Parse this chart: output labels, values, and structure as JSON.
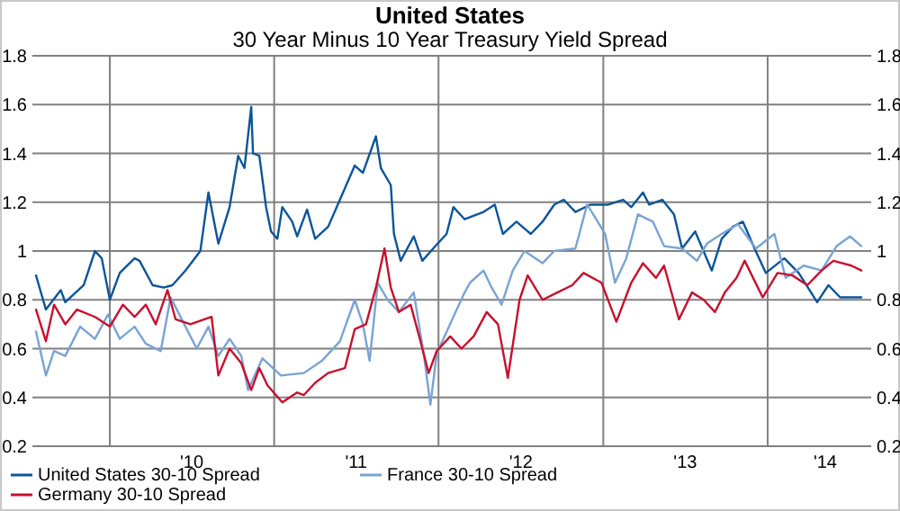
{
  "chart_data": {
    "type": "line",
    "title": "United States",
    "subtitle": "30 Year Minus 10 Year Treasury Yield Spread",
    "xlim": [
      "2009-07-13",
      "2014-08-19"
    ],
    "xticks": [
      {
        "value": "2010-01-01",
        "label": null
      },
      {
        "value": "2010-07-02",
        "label": "'10"
      },
      {
        "value": "2011-01-01",
        "label": null
      },
      {
        "value": "2011-07-02",
        "label": "'11"
      },
      {
        "value": "2012-01-01",
        "label": null
      },
      {
        "value": "2012-07-02",
        "label": "'12"
      },
      {
        "value": "2013-01-01",
        "label": null
      },
      {
        "value": "2013-07-02",
        "label": "'13"
      },
      {
        "value": "2014-01-01",
        "label": null
      },
      {
        "value": "2014-05-09",
        "label": "'14"
      }
    ],
    "ylim": [
      0.2,
      1.8
    ],
    "yticks": [
      0.2,
      0.4,
      0.6,
      0.8,
      1,
      1.2,
      1.4,
      1.6,
      1.8
    ],
    "y2lim": [
      0.2,
      1.8
    ],
    "y2ticks": [
      0.2,
      0.4,
      0.6,
      0.8,
      1,
      1.2,
      1.4,
      1.6,
      1.8
    ],
    "grid": true,
    "legend": "bottom",
    "line_style": "solid",
    "marker": "none",
    "series": [
      {
        "name": "United States 30-10 Spread",
        "color": "#0b559b",
        "x": [
          "2009-07-21",
          "2009-08-12",
          "2009-09-14",
          "2009-09-24",
          "2009-11-04",
          "2009-11-29",
          "2009-12-14",
          "2010-01-01",
          "2010-01-23",
          "2010-02-25",
          "2010-03-08",
          "2010-04-06",
          "2010-05-01",
          "2010-05-20",
          "2010-06-18",
          "2010-07-21",
          "2010-08-08",
          "2010-08-30",
          "2010-09-24",
          "2010-10-13",
          "2010-10-27",
          "2010-11-11",
          "2010-11-15",
          "2010-11-29",
          "2010-12-14",
          "2010-12-25",
          "2011-01-08",
          "2011-01-19",
          "2011-02-10",
          "2011-02-21",
          "2011-03-15",
          "2011-04-02",
          "2011-05-01",
          "2011-05-27",
          "2011-06-29",
          "2011-07-17",
          "2011-08-15",
          "2011-08-26",
          "2011-09-17",
          "2011-09-24",
          "2011-10-09",
          "2011-11-07",
          "2011-11-26",
          "2011-12-25",
          "2012-01-19",
          "2012-02-03",
          "2012-02-28",
          "2012-04-10",
          "2012-05-05",
          "2012-05-23",
          "2012-06-22",
          "2012-07-24",
          "2012-08-19",
          "2012-09-14",
          "2012-10-05",
          "2012-10-31",
          "2012-12-03",
          "2013-01-12",
          "2013-02-14",
          "2013-03-04",
          "2013-03-30",
          "2013-04-13",
          "2013-05-12",
          "2013-06-07",
          "2013-06-25",
          "2013-07-24",
          "2013-08-30",
          "2013-09-21",
          "2013-10-16",
          "2013-11-07",
          "2013-12-03",
          "2013-12-28",
          "2014-02-07",
          "2014-03-11",
          "2014-04-21",
          "2014-05-16",
          "2014-06-11",
          "2014-07-06",
          "2014-07-28"
        ],
        "values": [
          0.9,
          0.76,
          0.84,
          0.79,
          0.86,
          1.0,
          0.97,
          0.8,
          0.91,
          0.97,
          0.96,
          0.86,
          0.85,
          0.86,
          0.92,
          1.0,
          1.24,
          1.03,
          1.18,
          1.39,
          1.34,
          1.59,
          1.4,
          1.39,
          1.18,
          1.08,
          1.05,
          1.18,
          1.12,
          1.06,
          1.17,
          1.05,
          1.1,
          1.21,
          1.35,
          1.32,
          1.47,
          1.34,
          1.27,
          1.07,
          0.96,
          1.06,
          0.96,
          1.02,
          1.07,
          1.18,
          1.13,
          1.16,
          1.19,
          1.07,
          1.12,
          1.07,
          1.12,
          1.19,
          1.21,
          1.16,
          1.19,
          1.19,
          1.21,
          1.18,
          1.24,
          1.19,
          1.21,
          1.15,
          1.01,
          1.08,
          0.92,
          1.05,
          1.1,
          1.12,
          1.01,
          0.91,
          0.97,
          0.91,
          0.79,
          0.86,
          0.81,
          0.81,
          0.81
        ]
      },
      {
        "name": "France 30-10 Spread",
        "color": "#7aa3d3",
        "x": [
          "2009-07-21",
          "2009-08-12",
          "2009-08-30",
          "2009-09-24",
          "2009-10-27",
          "2009-11-29",
          "2009-12-28",
          "2010-01-23",
          "2010-02-25",
          "2010-03-22",
          "2010-04-24",
          "2010-05-16",
          "2010-06-18",
          "2010-07-13",
          "2010-08-08",
          "2010-08-30",
          "2010-09-24",
          "2010-10-20",
          "2010-11-04",
          "2010-12-06",
          "2011-01-16",
          "2011-03-08",
          "2011-04-17",
          "2011-05-27",
          "2011-06-29",
          "2011-07-17",
          "2011-08-01",
          "2011-08-19",
          "2011-09-10",
          "2011-10-05",
          "2011-11-07",
          "2011-11-29",
          "2011-12-14",
          "2011-12-28",
          "2012-02-03",
          "2012-02-28",
          "2012-03-11",
          "2012-04-10",
          "2012-04-28",
          "2012-05-20",
          "2012-06-14",
          "2012-07-10",
          "2012-08-19",
          "2012-09-14",
          "2012-10-31",
          "2012-11-26",
          "2012-12-03",
          "2013-01-05",
          "2013-01-27",
          "2013-02-21",
          "2013-03-19",
          "2013-04-21",
          "2013-05-16",
          "2013-06-25",
          "2013-07-28",
          "2013-08-19",
          "2013-09-21",
          "2013-10-27",
          "2013-12-06",
          "2014-01-16",
          "2014-02-10",
          "2014-03-22",
          "2014-05-01",
          "2014-06-03",
          "2014-07-03",
          "2014-07-28"
        ],
        "values": [
          0.67,
          0.49,
          0.59,
          0.57,
          0.69,
          0.64,
          0.74,
          0.64,
          0.69,
          0.62,
          0.59,
          0.81,
          0.69,
          0.6,
          0.69,
          0.57,
          0.64,
          0.57,
          0.43,
          0.56,
          0.49,
          0.5,
          0.55,
          0.63,
          0.8,
          0.7,
          0.55,
          0.87,
          0.8,
          0.75,
          0.83,
          0.58,
          0.37,
          0.58,
          0.73,
          0.83,
          0.87,
          0.92,
          0.85,
          0.78,
          0.92,
          1.0,
          0.95,
          1.0,
          1.01,
          1.19,
          1.17,
          1.07,
          0.87,
          0.97,
          1.15,
          1.12,
          1.02,
          1.01,
          0.96,
          1.03,
          1.07,
          1.11,
          1.01,
          1.07,
          0.89,
          0.94,
          0.92,
          1.02,
          1.06,
          1.02
        ]
      },
      {
        "name": "Germany 30-10 Spread",
        "color": "#c8102e",
        "x": [
          "2009-07-21",
          "2009-08-12",
          "2009-08-30",
          "2009-09-24",
          "2009-10-20",
          "2009-11-29",
          "2010-01-01",
          "2010-01-30",
          "2010-02-25",
          "2010-03-22",
          "2010-04-13",
          "2010-05-09",
          "2010-05-27",
          "2010-06-29",
          "2010-08-15",
          "2010-08-30",
          "2010-09-24",
          "2010-10-20",
          "2010-11-11",
          "2010-11-29",
          "2010-12-17",
          "2011-01-19",
          "2011-02-21",
          "2011-03-08",
          "2011-04-02",
          "2011-05-01",
          "2011-06-07",
          "2011-06-29",
          "2011-07-24",
          "2011-08-15",
          "2011-09-03",
          "2011-09-17",
          "2011-10-05",
          "2011-10-31",
          "2011-11-22",
          "2011-12-10",
          "2011-12-28",
          "2012-01-27",
          "2012-02-21",
          "2012-03-19",
          "2012-04-17",
          "2012-05-12",
          "2012-06-03",
          "2012-06-29",
          "2012-07-17",
          "2012-08-19",
          "2012-09-21",
          "2012-10-24",
          "2012-11-18",
          "2012-12-28",
          "2013-01-30",
          "2013-03-04",
          "2013-03-30",
          "2013-04-28",
          "2013-05-16",
          "2013-06-18",
          "2013-07-17",
          "2013-08-12",
          "2013-09-06",
          "2013-09-28",
          "2013-10-24",
          "2013-11-11",
          "2013-12-21",
          "2014-01-23",
          "2014-02-25",
          "2014-03-30",
          "2014-05-01",
          "2014-05-27",
          "2014-07-06",
          "2014-07-28"
        ],
        "values": [
          0.76,
          0.63,
          0.78,
          0.7,
          0.76,
          0.73,
          0.69,
          0.78,
          0.73,
          0.78,
          0.7,
          0.84,
          0.72,
          0.7,
          0.73,
          0.49,
          0.6,
          0.54,
          0.43,
          0.52,
          0.45,
          0.38,
          0.42,
          0.41,
          0.46,
          0.5,
          0.52,
          0.68,
          0.7,
          0.85,
          1.01,
          0.85,
          0.75,
          0.78,
          0.63,
          0.5,
          0.59,
          0.65,
          0.6,
          0.65,
          0.75,
          0.7,
          0.48,
          0.8,
          0.9,
          0.8,
          0.83,
          0.86,
          0.91,
          0.87,
          0.71,
          0.87,
          0.95,
          0.89,
          0.94,
          0.72,
          0.83,
          0.8,
          0.75,
          0.83,
          0.89,
          0.96,
          0.81,
          0.91,
          0.9,
          0.86,
          0.92,
          0.96,
          0.94,
          0.92
        ]
      }
    ]
  }
}
